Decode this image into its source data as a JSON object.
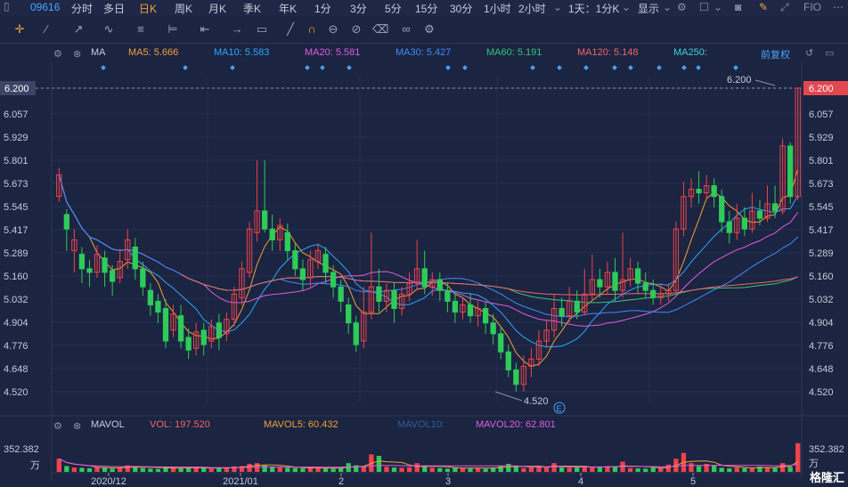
{
  "topbar": {
    "code": "09616",
    "items": [
      "分时",
      "多日",
      "日K",
      "周K",
      "月K",
      "季K",
      "年K",
      "1分",
      "3分",
      "5分",
      "15分",
      "30分",
      "1小时",
      "2小时"
    ],
    "active_index": 2,
    "period_select": "1天：1分K",
    "display_label": "显示",
    "fio_label": "FIO"
  },
  "indicator_bar": {
    "ma_name": "MA",
    "ma5": "MA5: 5.666",
    "ma10": "MA10: 5.583",
    "ma20": "MA20: 5.581",
    "ma30": "MA30: 5.427",
    "ma60": "MA60: 5.191",
    "ma120": "MA120: 5.148",
    "ma250": "MA250:",
    "adjust": "前复权",
    "colors": {
      "ma5": "#f1a13a",
      "ma10": "#2aa7ff",
      "ma20": "#e15ce3",
      "ma30": "#3f8cff",
      "ma60": "#36c47c",
      "ma120": "#f2656b",
      "ma250": "#3bd2e0"
    }
  },
  "vol_bar": {
    "name": "MAVOL",
    "vol": "VOL: 197.520",
    "mavol5": "MAVOL5: 60.432",
    "mavol10": "MAVOL10:",
    "mavol20": "MAVOL20: 62.801"
  },
  "chart_data": {
    "type": "candlestick",
    "y_ticks": [
      "6.200",
      "6.057",
      "5.929",
      "5.801",
      "5.673",
      "5.545",
      "5.417",
      "5.289",
      "5.160",
      "5.032",
      "4.904",
      "4.776",
      "4.648",
      "4.520"
    ],
    "ylim": [
      4.46,
      6.2
    ],
    "x_labels": [
      "2020/12",
      "2021/01",
      "2",
      "3",
      "4",
      "5"
    ],
    "current_price": "6.200",
    "high_label": "6.200",
    "low_label": "4.520",
    "vol_max_label": "352.382",
    "vol_unit": "万",
    "vol_max_label_right": "352.382",
    "event_marker": "E",
    "candles": [
      [
        5.6,
        5.72,
        5.76,
        5.57
      ],
      [
        5.5,
        5.42,
        5.53,
        5.3
      ],
      [
        5.3,
        5.36,
        5.42,
        5.18
      ],
      [
        5.28,
        5.2,
        5.32,
        5.12
      ],
      [
        5.2,
        5.18,
        5.25,
        5.1
      ],
      [
        5.18,
        5.28,
        5.33,
        5.15
      ],
      [
        5.26,
        5.18,
        5.3,
        5.1
      ],
      [
        5.19,
        5.13,
        5.22,
        5.05
      ],
      [
        5.15,
        5.24,
        5.31,
        5.12
      ],
      [
        5.25,
        5.36,
        5.42,
        5.2
      ],
      [
        5.32,
        5.2,
        5.37,
        5.14
      ],
      [
        5.2,
        5.1,
        5.24,
        5.05
      ],
      [
        5.08,
        5.0,
        5.12,
        4.94
      ],
      [
        5.02,
        4.96,
        5.06,
        4.9
      ],
      [
        4.98,
        4.8,
        5.03,
        4.76
      ],
      [
        4.86,
        4.95,
        5.0,
        4.82
      ],
      [
        4.94,
        4.8,
        5.0,
        4.76
      ],
      [
        4.82,
        4.75,
        4.87,
        4.7
      ],
      [
        4.76,
        4.85,
        4.9,
        4.72
      ],
      [
        4.86,
        4.78,
        4.9,
        4.72
      ],
      [
        4.8,
        4.88,
        4.92,
        4.76
      ],
      [
        4.9,
        4.82,
        4.95,
        4.75
      ],
      [
        4.84,
        4.92,
        4.96,
        4.8
      ],
      [
        4.92,
        5.06,
        5.1,
        4.88
      ],
      [
        5.04,
        5.2,
        5.24,
        5.0
      ],
      [
        5.18,
        5.42,
        5.46,
        5.15
      ],
      [
        5.4,
        5.52,
        5.8,
        5.35
      ],
      [
        5.52,
        5.42,
        5.8,
        5.4
      ],
      [
        5.42,
        5.36,
        5.5,
        5.3
      ],
      [
        5.36,
        5.44,
        5.48,
        5.3
      ],
      [
        5.4,
        5.3,
        5.45,
        5.25
      ],
      [
        5.3,
        5.2,
        5.34,
        5.16
      ],
      [
        5.2,
        5.14,
        5.25,
        5.08
      ],
      [
        5.15,
        5.25,
        5.3,
        5.1
      ],
      [
        5.24,
        5.3,
        5.34,
        5.2
      ],
      [
        5.28,
        5.18,
        5.32,
        5.12
      ],
      [
        5.18,
        5.1,
        5.22,
        5.04
      ],
      [
        5.1,
        5.02,
        5.14,
        4.96
      ],
      [
        5.0,
        4.9,
        5.04,
        4.84
      ],
      [
        4.9,
        4.78,
        4.94,
        4.74
      ],
      [
        4.8,
        4.96,
        5.1,
        4.76
      ],
      [
        4.96,
        5.1,
        5.4,
        4.92
      ],
      [
        5.1,
        5.02,
        5.2,
        4.96
      ],
      [
        5.02,
        5.08,
        5.12,
        4.96
      ],
      [
        5.08,
        4.98,
        5.12,
        4.9
      ],
      [
        4.98,
        5.06,
        5.1,
        4.94
      ],
      [
        5.06,
        5.12,
        5.18,
        5.02
      ],
      [
        5.12,
        5.2,
        5.36,
        5.08
      ],
      [
        5.2,
        5.1,
        5.3,
        5.06
      ],
      [
        5.1,
        5.14,
        5.18,
        5.05
      ],
      [
        5.14,
        5.08,
        5.18,
        5.02
      ],
      [
        5.08,
        5.02,
        5.12,
        4.96
      ],
      [
        5.02,
        4.96,
        5.06,
        4.9
      ],
      [
        4.96,
        5.0,
        5.04,
        4.92
      ],
      [
        5.0,
        4.94,
        5.06,
        4.9
      ],
      [
        4.94,
        4.98,
        5.02,
        4.88
      ],
      [
        4.98,
        4.9,
        5.02,
        4.84
      ],
      [
        4.9,
        4.84,
        4.95,
        4.78
      ],
      [
        4.84,
        4.74,
        4.88,
        4.7
      ],
      [
        4.74,
        4.64,
        4.78,
        4.6
      ],
      [
        4.64,
        4.56,
        4.68,
        4.52
      ],
      [
        4.56,
        4.66,
        4.72,
        4.52
      ],
      [
        4.66,
        4.7,
        4.76,
        4.6
      ],
      [
        4.7,
        4.8,
        4.86,
        4.66
      ],
      [
        4.8,
        4.86,
        4.92,
        4.76
      ],
      [
        4.86,
        4.98,
        5.06,
        4.82
      ],
      [
        4.98,
        4.94,
        5.04,
        4.88
      ],
      [
        4.94,
        5.02,
        5.1,
        4.9
      ],
      [
        5.02,
        4.96,
        5.08,
        4.92
      ],
      [
        4.96,
        5.06,
        5.2,
        4.94
      ],
      [
        5.06,
        5.14,
        5.28,
        5.02
      ],
      [
        5.14,
        5.1,
        5.2,
        5.04
      ],
      [
        5.1,
        5.18,
        5.24,
        5.06
      ],
      [
        5.18,
        5.08,
        5.26,
        5.02
      ],
      [
        5.08,
        5.14,
        5.4,
        5.04
      ],
      [
        5.14,
        5.2,
        5.26,
        5.1
      ],
      [
        5.2,
        5.12,
        5.24,
        5.06
      ],
      [
        5.12,
        5.08,
        5.18,
        5.04
      ],
      [
        5.08,
        5.04,
        5.14,
        5.0
      ],
      [
        5.04,
        5.06,
        5.12,
        5.0
      ],
      [
        5.06,
        5.08,
        5.12,
        5.02
      ],
      [
        5.08,
        5.42,
        5.46,
        5.06
      ],
      [
        5.42,
        5.6,
        5.68,
        5.38
      ],
      [
        5.6,
        5.64,
        5.7,
        5.54
      ],
      [
        5.64,
        5.62,
        5.74,
        5.56
      ],
      [
        5.62,
        5.66,
        5.72,
        5.58
      ],
      [
        5.66,
        5.6,
        5.7,
        5.54
      ],
      [
        5.6,
        5.46,
        5.64,
        5.4
      ],
      [
        5.46,
        5.4,
        5.52,
        5.34
      ],
      [
        5.4,
        5.48,
        5.56,
        5.36
      ],
      [
        5.48,
        5.42,
        5.54,
        5.38
      ],
      [
        5.42,
        5.52,
        5.62,
        5.4
      ],
      [
        5.52,
        5.48,
        5.58,
        5.44
      ],
      [
        5.48,
        5.56,
        5.66,
        5.46
      ],
      [
        5.56,
        5.52,
        5.66,
        5.48
      ],
      [
        5.52,
        5.88,
        5.92,
        5.5
      ],
      [
        5.88,
        5.6,
        5.9,
        5.56
      ],
      [
        5.6,
        6.2,
        6.2,
        5.58
      ]
    ],
    "volumes": [
      90,
      40,
      30,
      28,
      25,
      32,
      28,
      22,
      30,
      45,
      38,
      26,
      22,
      20,
      35,
      30,
      25,
      28,
      30,
      26,
      22,
      28,
      30,
      38,
      40,
      55,
      60,
      45,
      35,
      30,
      28,
      26,
      24,
      30,
      28,
      25,
      22,
      26,
      60,
      45,
      40,
      120,
      110,
      35,
      30,
      28,
      32,
      60,
      40,
      28,
      26,
      22,
      30,
      26,
      24,
      28,
      22,
      30,
      40,
      55,
      38,
      26,
      30,
      42,
      35,
      60,
      30,
      28,
      36,
      40,
      32,
      30,
      38,
      34,
      70,
      26,
      24,
      22,
      30,
      28,
      50,
      90,
      130,
      60,
      40,
      55,
      45,
      28,
      24,
      30,
      26,
      28,
      36,
      30,
      28,
      60,
      35,
      197
    ]
  }
}
